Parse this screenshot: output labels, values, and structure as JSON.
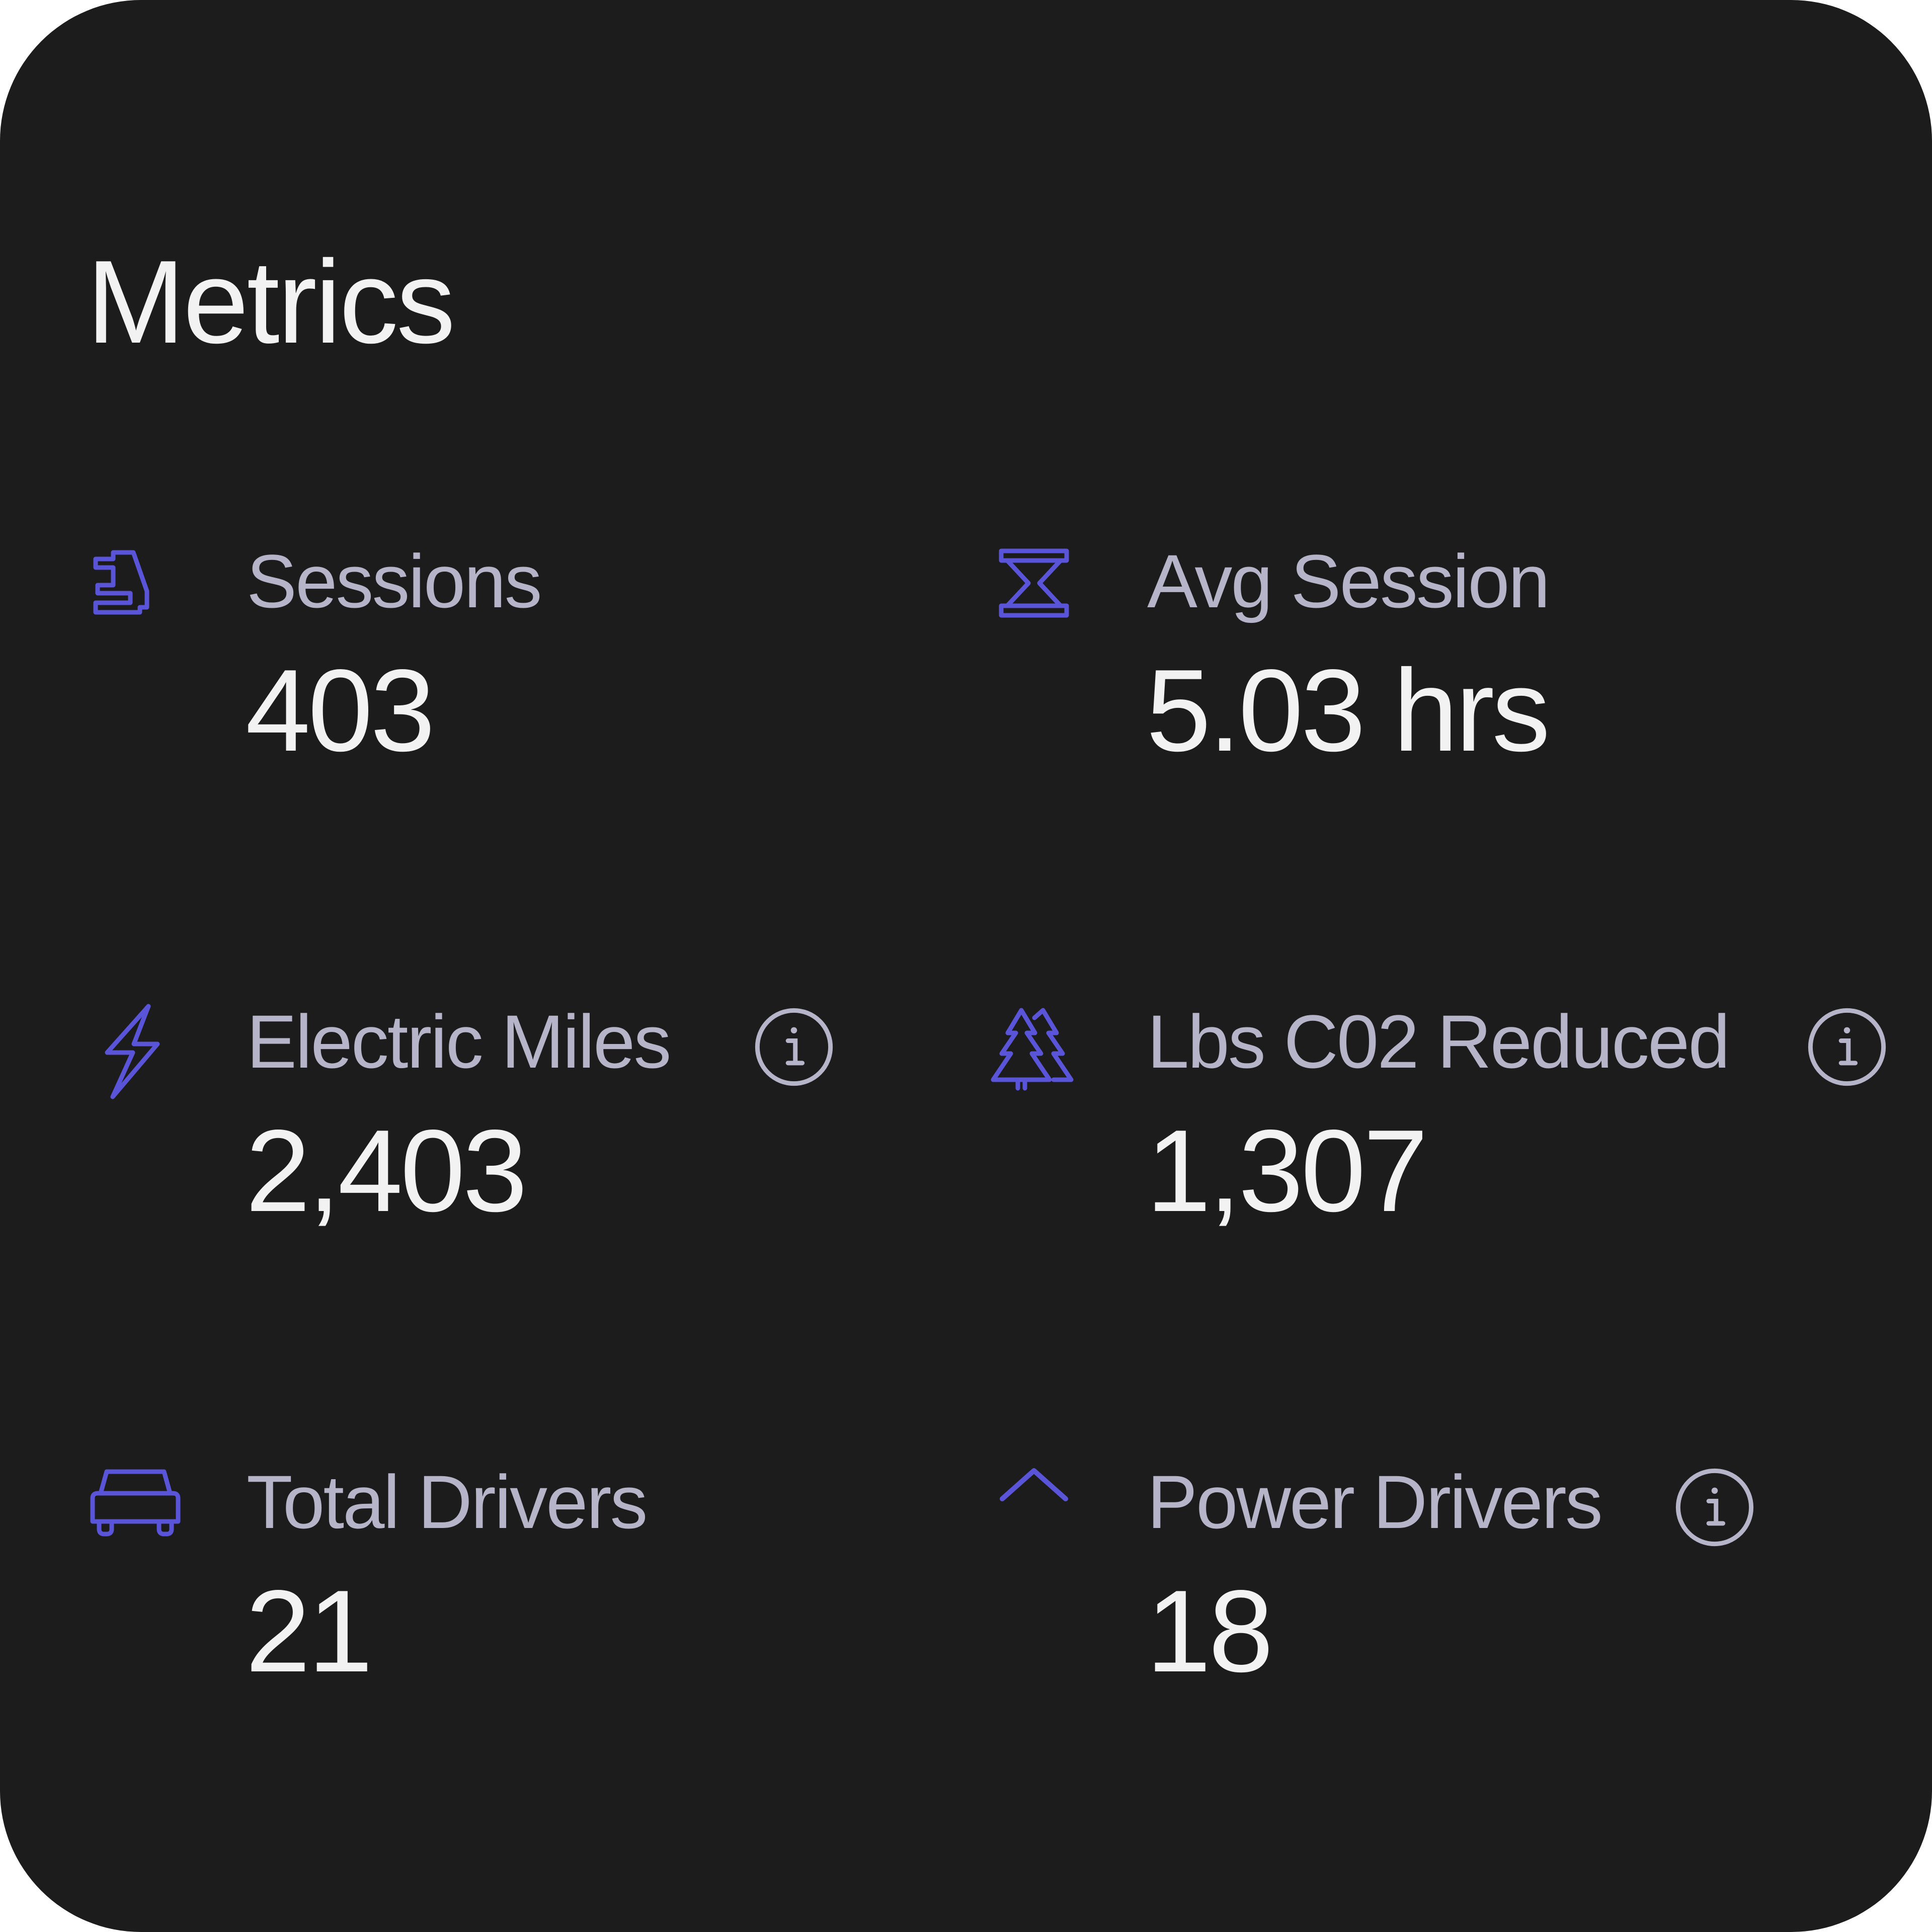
{
  "card": {
    "title": "Metrics"
  },
  "colors": {
    "background": "#1c1c1d",
    "accent": "#5a55d8",
    "label": "#b6b4c8",
    "value": "#f2f2f2",
    "info_icon": "#b6b4c8"
  },
  "metrics": [
    {
      "label": "Sessions",
      "value": "403",
      "icon": "ev-charger-plug-icon"
    },
    {
      "label": "Avg Session",
      "value": "5.03 hrs",
      "icon": "hourglass-icon"
    },
    {
      "label": "Electric Miles",
      "value": "2,403",
      "icon": "lightning-bolt-icon",
      "info_icon": "info-icon"
    },
    {
      "label": "Lbs C02 Reduced",
      "value": "1,307",
      "icon": "pine-trees-icon",
      "info_icon": "info-icon"
    },
    {
      "label": "Total Drivers",
      "value": "21",
      "icon": "car-icon"
    },
    {
      "label": "Power Drivers",
      "value": "18",
      "icon": "chevron-up-icon",
      "info_icon": "info-icon"
    }
  ]
}
